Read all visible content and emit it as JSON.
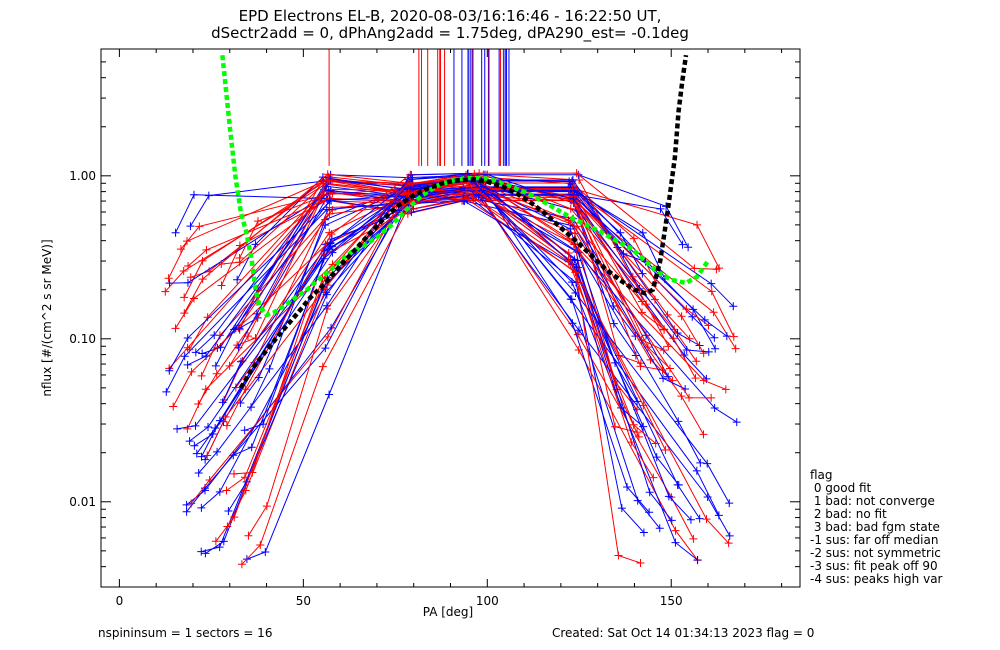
{
  "chart_data": {
    "type": "line",
    "title": "EPD Electrons EL-B, 2020-08-03/16:16:46 - 16:22:50 UT,",
    "subtitle": "dSectr2add = 0, dPhAng2add = 1.75deg, dPA290_est=  -0.1deg",
    "xlabel": "PA [deg]",
    "ylabel": "nflux [#/(cm^2 s sr MeV)]",
    "xlim": [
      -5,
      185
    ],
    "ylim": [
      0.003,
      6.0
    ],
    "yscale": "log",
    "x_ticks": [
      0,
      50,
      100,
      150
    ],
    "x_tick_labels": [
      "0",
      "50",
      "100",
      "150"
    ],
    "y_ticks": [
      0.01,
      0.1,
      1.0
    ],
    "y_tick_labels": [
      "0.01",
      "0.10",
      "1.00"
    ],
    "colors": {
      "red": "#ff0000",
      "blue": "#0000ff",
      "green": "#00ff00",
      "black": "#000000"
    },
    "series": [
      {
        "color": "#00ff00",
        "style": "dashed-thick",
        "x": [
          28,
          30,
          31.5,
          33,
          34.5,
          36,
          37,
          38,
          40,
          42,
          45,
          48,
          51,
          54,
          57,
          60,
          63,
          67,
          70,
          74,
          78,
          82,
          86,
          90,
          94,
          98,
          100,
          103,
          107,
          111,
          115,
          119,
          123,
          127,
          131,
          135,
          139,
          143,
          146,
          150,
          154,
          157,
          160
        ],
        "y": [
          5.5,
          2.0,
          1.0,
          0.6,
          0.45,
          0.3,
          0.2,
          0.16,
          0.14,
          0.145,
          0.16,
          0.18,
          0.2,
          0.23,
          0.26,
          0.3,
          0.34,
          0.38,
          0.42,
          0.5,
          0.62,
          0.75,
          0.86,
          0.93,
          0.97,
          0.97,
          0.96,
          0.92,
          0.85,
          0.78,
          0.7,
          0.62,
          0.55,
          0.5,
          0.45,
          0.4,
          0.36,
          0.3,
          0.26,
          0.23,
          0.22,
          0.24,
          0.3
        ]
      },
      {
        "color": "#000000",
        "style": "dashed-thick",
        "x": [
          33,
          36,
          40,
          44,
          48,
          52,
          56,
          60,
          64,
          68,
          72,
          76,
          80,
          84,
          88,
          92,
          96,
          100,
          104,
          108,
          112,
          116,
          120,
          124,
          128,
          132,
          136,
          140,
          143,
          145,
          147,
          149,
          151,
          152,
          153,
          154
        ],
        "y": [
          0.05,
          0.065,
          0.085,
          0.11,
          0.14,
          0.18,
          0.22,
          0.28,
          0.35,
          0.44,
          0.55,
          0.66,
          0.76,
          0.84,
          0.9,
          0.94,
          0.95,
          0.92,
          0.86,
          0.78,
          0.68,
          0.58,
          0.48,
          0.4,
          0.33,
          0.27,
          0.23,
          0.2,
          0.19,
          0.2,
          0.3,
          0.6,
          1.3,
          2.5,
          3.8,
          5.5
        ]
      }
    ]
  },
  "legend": {
    "title": "flag",
    "items": [
      " 0 good fit",
      " 1 bad: not converge",
      " 2 bad: no fit",
      " 3 bad: bad fgm state",
      "-1 sus: far off median",
      "-2 sus: not symmetric",
      "-3 sus: fit peak off 90",
      "-4 sus: peaks high var"
    ]
  },
  "footer": {
    "left": "nspininsum =  1  sectors = 16",
    "right": "Created: Sat Oct 14 01:34:13 2023   flag = 0"
  }
}
